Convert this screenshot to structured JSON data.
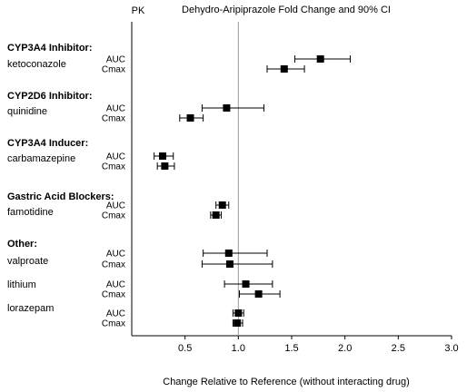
{
  "chart_data": {
    "type": "scatter",
    "title": "Dehydro-Aripiprazole Fold Change and 90% CI",
    "column_header": "PK",
    "xlabel": "Change Relative to Reference (without interacting drug)",
    "ylabel": "",
    "xlim": [
      0,
      3.0
    ],
    "xticks": [
      "0.5",
      "1.0",
      "1.5",
      "2.0",
      "2.5",
      "3.0"
    ],
    "reference_line": 1.0,
    "groups": [
      {
        "title": "CYP3A4 Inhibitor:",
        "drugs": [
          {
            "name": "ketoconazole",
            "metrics": [
              {
                "metric": "AUC",
                "estimate": 1.77,
                "lower": 1.53,
                "upper": 2.05
              },
              {
                "metric": "Cmax",
                "estimate": 1.43,
                "lower": 1.27,
                "upper": 1.62
              }
            ]
          }
        ]
      },
      {
        "title": "CYP2D6 Inhibitor:",
        "drugs": [
          {
            "name": "quinidine",
            "metrics": [
              {
                "metric": "AUC",
                "estimate": 0.89,
                "lower": 0.66,
                "upper": 1.24
              },
              {
                "metric": "Cmax",
                "estimate": 0.55,
                "lower": 0.45,
                "upper": 0.67
              }
            ]
          }
        ]
      },
      {
        "title": "CYP3A4 Inducer:",
        "drugs": [
          {
            "name": "carbamazepine",
            "metrics": [
              {
                "metric": "AUC",
                "estimate": 0.29,
                "lower": 0.21,
                "upper": 0.39
              },
              {
                "metric": "Cmax",
                "estimate": 0.31,
                "lower": 0.24,
                "upper": 0.4
              }
            ]
          }
        ]
      },
      {
        "title": "Gastric Acid Blockers:",
        "drugs": [
          {
            "name": "famotidine",
            "metrics": [
              {
                "metric": "AUC",
                "estimate": 0.85,
                "lower": 0.79,
                "upper": 0.91
              },
              {
                "metric": "Cmax",
                "estimate": 0.79,
                "lower": 0.74,
                "upper": 0.84
              }
            ]
          }
        ]
      },
      {
        "title": "Other:",
        "drugs": [
          {
            "name": "valproate",
            "metrics": [
              {
                "metric": "AUC",
                "estimate": 0.91,
                "lower": 0.67,
                "upper": 1.27
              },
              {
                "metric": "Cmax",
                "estimate": 0.92,
                "lower": 0.66,
                "upper": 1.32
              }
            ]
          },
          {
            "name": "lithium",
            "metrics": [
              {
                "metric": "AUC",
                "estimate": 1.07,
                "lower": 0.87,
                "upper": 1.32
              },
              {
                "metric": "Cmax",
                "estimate": 1.19,
                "lower": 1.01,
                "upper": 1.39
              }
            ]
          },
          {
            "name": "lorazepam",
            "metrics": [
              {
                "metric": "AUC",
                "estimate": 1.0,
                "lower": 0.95,
                "upper": 1.05
              },
              {
                "metric": "Cmax",
                "estimate": 0.99,
                "lower": 0.95,
                "upper": 1.04
              }
            ]
          }
        ]
      }
    ]
  }
}
